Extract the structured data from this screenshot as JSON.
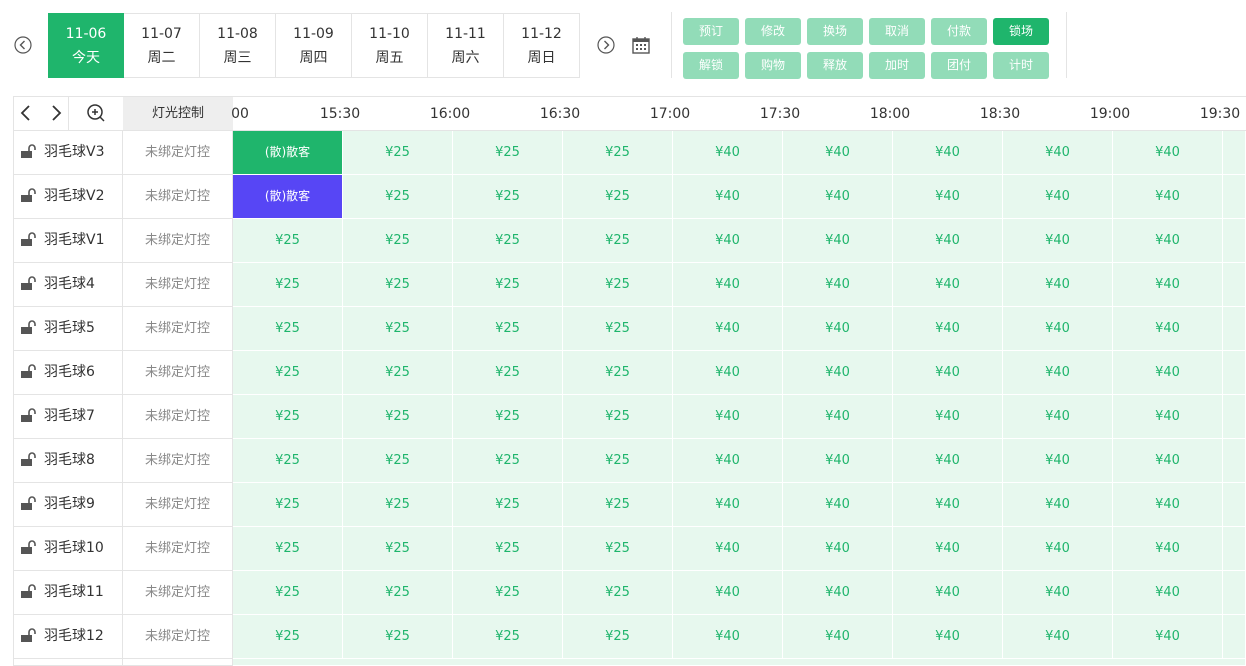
{
  "dates": [
    {
      "date": "11-06",
      "day": "今天"
    },
    {
      "date": "11-07",
      "day": "周二"
    },
    {
      "date": "11-08",
      "day": "周三"
    },
    {
      "date": "11-09",
      "day": "周四"
    },
    {
      "date": "11-10",
      "day": "周五"
    },
    {
      "date": "11-11",
      "day": "周六"
    },
    {
      "date": "11-12",
      "day": "周日"
    }
  ],
  "buttons": [
    [
      "预订",
      "修改",
      "换场",
      "取消",
      "付款",
      "锁场"
    ],
    [
      "解锁",
      "购物",
      "释放",
      "加时",
      "团付",
      "计时"
    ]
  ],
  "header": {
    "light_label": "灯光控制"
  },
  "times": [
    "00",
    "15:30",
    "16:00",
    "16:30",
    "17:00",
    "17:30",
    "18:00",
    "18:30",
    "19:00",
    "19:30"
  ],
  "rows": [
    {
      "name": "羽毛球V3",
      "light": "未绑定灯控",
      "cells": [
        {
          "text": "(散)散客",
          "color": "#1fb56c"
        },
        "¥25",
        "¥25",
        "¥25",
        "¥40",
        "¥40",
        "¥40",
        "¥40",
        "¥40"
      ]
    },
    {
      "name": "羽毛球V2",
      "light": "未绑定灯控",
      "cells": [
        {
          "text": "(散)散客",
          "color": "#5746f5"
        },
        "¥25",
        "¥25",
        "¥25",
        "¥40",
        "¥40",
        "¥40",
        "¥40",
        "¥40"
      ]
    },
    {
      "name": "羽毛球V1",
      "light": "未绑定灯控",
      "cells": [
        "¥25",
        "¥25",
        "¥25",
        "¥25",
        "¥40",
        "¥40",
        "¥40",
        "¥40",
        "¥40"
      ]
    },
    {
      "name": "羽毛球4",
      "light": "未绑定灯控",
      "cells": [
        "¥25",
        "¥25",
        "¥25",
        "¥25",
        "¥40",
        "¥40",
        "¥40",
        "¥40",
        "¥40"
      ]
    },
    {
      "name": "羽毛球5",
      "light": "未绑定灯控",
      "cells": [
        "¥25",
        "¥25",
        "¥25",
        "¥25",
        "¥40",
        "¥40",
        "¥40",
        "¥40",
        "¥40"
      ]
    },
    {
      "name": "羽毛球6",
      "light": "未绑定灯控",
      "cells": [
        "¥25",
        "¥25",
        "¥25",
        "¥25",
        "¥40",
        "¥40",
        "¥40",
        "¥40",
        "¥40"
      ]
    },
    {
      "name": "羽毛球7",
      "light": "未绑定灯控",
      "cells": [
        "¥25",
        "¥25",
        "¥25",
        "¥25",
        "¥40",
        "¥40",
        "¥40",
        "¥40",
        "¥40"
      ]
    },
    {
      "name": "羽毛球8",
      "light": "未绑定灯控",
      "cells": [
        "¥25",
        "¥25",
        "¥25",
        "¥25",
        "¥40",
        "¥40",
        "¥40",
        "¥40",
        "¥40"
      ]
    },
    {
      "name": "羽毛球9",
      "light": "未绑定灯控",
      "cells": [
        "¥25",
        "¥25",
        "¥25",
        "¥25",
        "¥40",
        "¥40",
        "¥40",
        "¥40",
        "¥40"
      ]
    },
    {
      "name": "羽毛球10",
      "light": "未绑定灯控",
      "cells": [
        "¥25",
        "¥25",
        "¥25",
        "¥25",
        "¥40",
        "¥40",
        "¥40",
        "¥40",
        "¥40"
      ]
    },
    {
      "name": "羽毛球11",
      "light": "未绑定灯控",
      "cells": [
        "¥25",
        "¥25",
        "¥25",
        "¥25",
        "¥40",
        "¥40",
        "¥40",
        "¥40",
        "¥40"
      ]
    },
    {
      "name": "羽毛球12",
      "light": "未绑定灯控",
      "cells": [
        "¥25",
        "¥25",
        "¥25",
        "¥25",
        "¥40",
        "¥40",
        "¥40",
        "¥40",
        "¥40"
      ]
    }
  ]
}
